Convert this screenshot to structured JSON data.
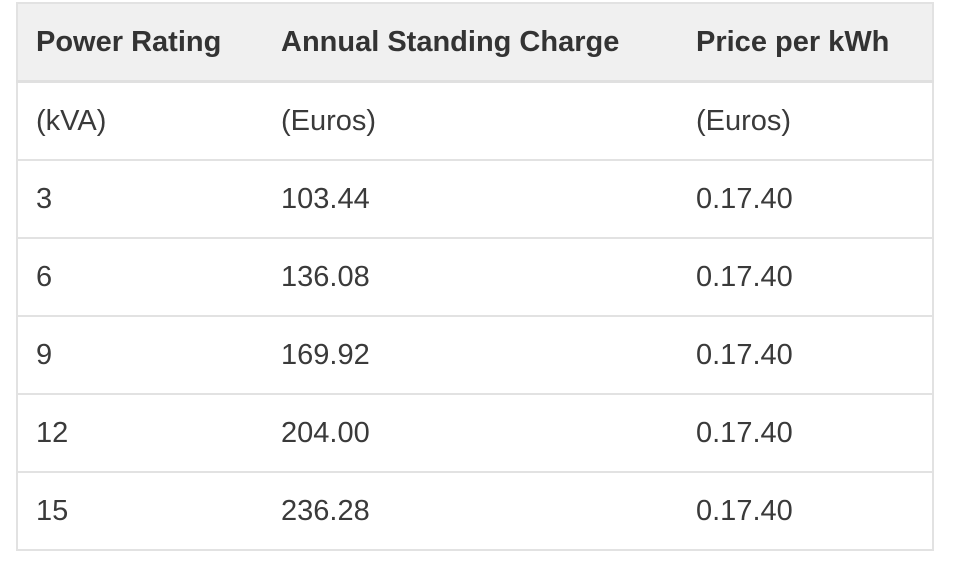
{
  "table": {
    "header": [
      "Power Rating",
      "Annual Standing Charge",
      "Price per kWh"
    ],
    "rows": [
      [
        "(kVA)",
        "(Euros)",
        "(Euros)"
      ],
      [
        "3",
        "103.44",
        "0.17.40"
      ],
      [
        "6",
        "136.08",
        "0.17.40"
      ],
      [
        "9",
        "169.92",
        "0.17.40"
      ],
      [
        "12",
        "204.00",
        "0.17.40"
      ],
      [
        "15",
        "236.28",
        "0.17.40"
      ]
    ]
  }
}
